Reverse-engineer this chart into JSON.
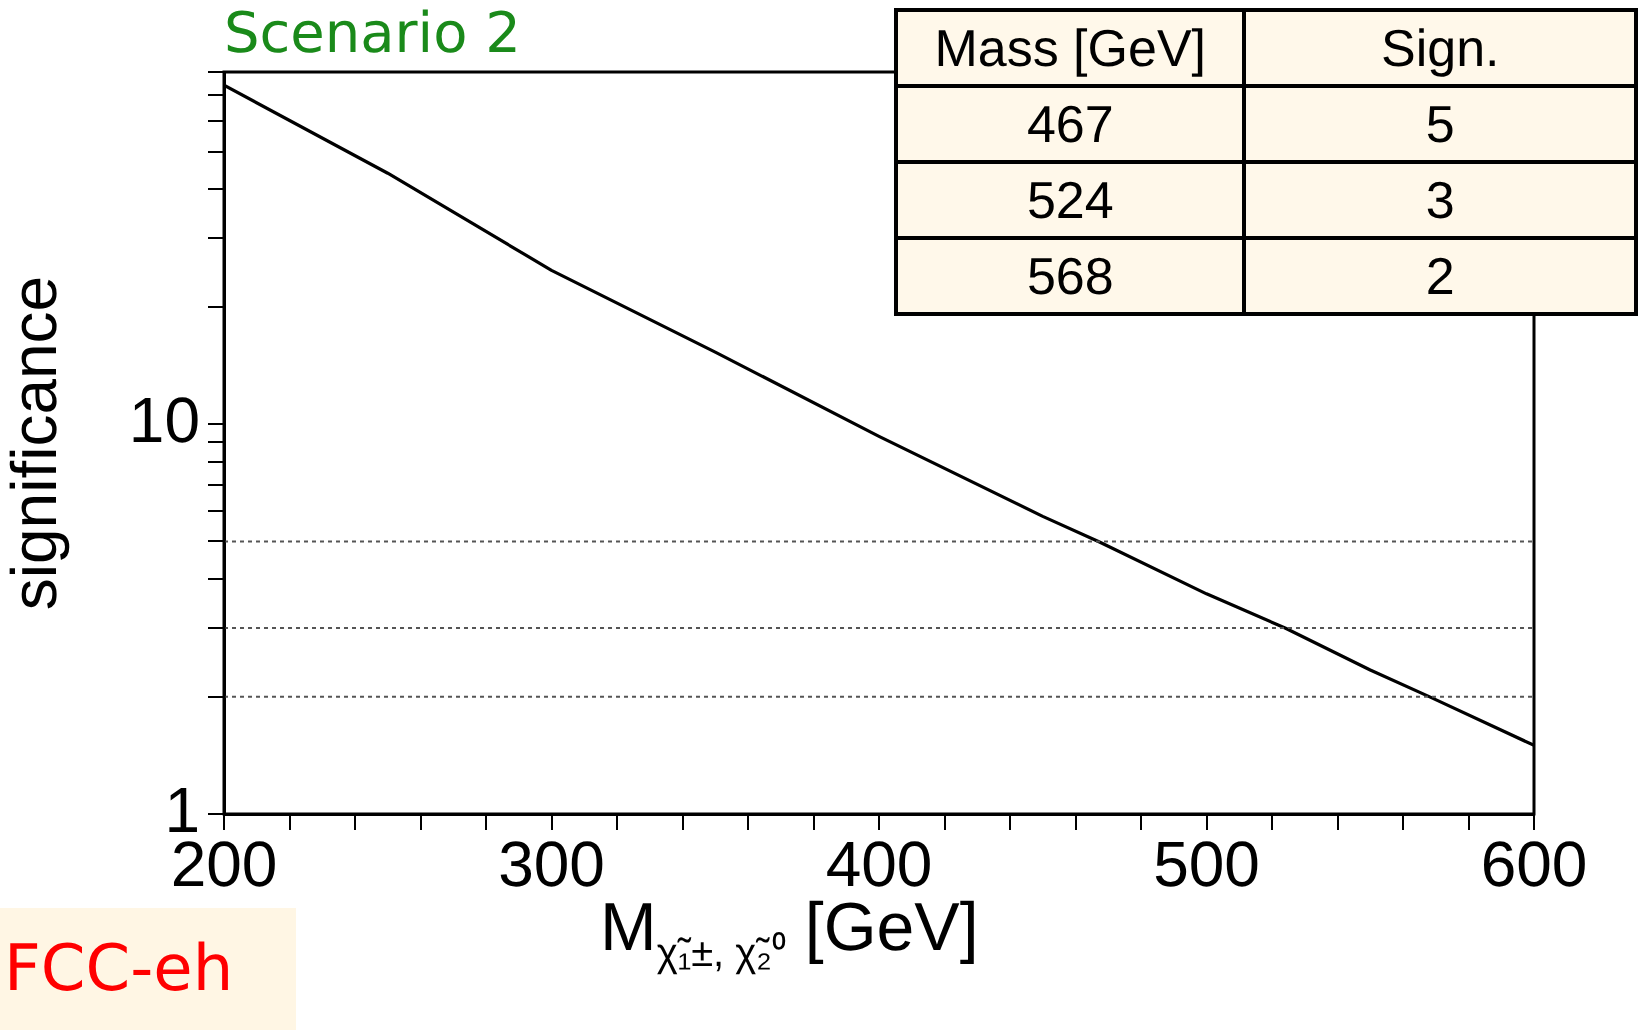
{
  "chart_data": {
    "type": "line",
    "title": "Scenario 2",
    "xlabel": "M$_{χ̃₁±, χ̃₂⁰}$ [GeV]",
    "ylabel": "significance",
    "x": [
      200,
      250,
      300,
      350,
      400,
      450,
      467,
      500,
      524,
      550,
      568,
      600
    ],
    "series": [
      {
        "color": "#000000",
        "values": [
          74,
          44,
          24.8,
          15.3,
          9.3,
          5.8,
          5,
          3.67,
          3,
          2.34,
          2,
          1.5
        ]
      }
    ],
    "xlim": [
      200,
      600
    ],
    "xticks": [
      200,
      {
        "value": 220,
        "label": null
      },
      {
        "value": 240,
        "label": null
      },
      {
        "value": 260,
        "label": null
      },
      {
        "value": 280,
        "label": null
      },
      300,
      {
        "value": 320,
        "label": null
      },
      {
        "value": 340,
        "label": null
      },
      {
        "value": 360,
        "label": null
      },
      {
        "value": 380,
        "label": null
      },
      400,
      {
        "value": 420,
        "label": null
      },
      {
        "value": 440,
        "label": null
      },
      {
        "value": 460,
        "label": null
      },
      {
        "value": 480,
        "label": null
      },
      500,
      {
        "value": 520,
        "label": null
      },
      {
        "value": 540,
        "label": null
      },
      {
        "value": 560,
        "label": null
      },
      {
        "value": 580,
        "label": null
      },
      600
    ],
    "ylim": [
      1,
      80
    ],
    "yticks": [
      1,
      {
        "value": 2,
        "label": null
      },
      {
        "value": 3,
        "label": null
      },
      {
        "value": 4,
        "label": null
      },
      {
        "value": 5,
        "label": null
      },
      {
        "value": 6,
        "label": null
      },
      {
        "value": 7,
        "label": null
      },
      {
        "value": 8,
        "label": null
      },
      {
        "value": 9,
        "label": null
      },
      10,
      {
        "value": 20,
        "label": null
      },
      {
        "value": 30,
        "label": null
      },
      {
        "value": 40,
        "label": null
      },
      {
        "value": 50,
        "label": null
      },
      {
        "value": 60,
        "label": null
      },
      {
        "value": 70,
        "label": null
      },
      {
        "value": 80,
        "label": null
      }
    ],
    "log": "y",
    "grid": false,
    "marker": "none",
    "line_style": "solid",
    "ref_lines": [
      {
        "axis": "y",
        "value": 5,
        "color": "#555555",
        "line_style": "dotted"
      },
      {
        "axis": "y",
        "value": 3,
        "color": "#555555",
        "line_style": "dotted"
      },
      {
        "axis": "y",
        "value": 2,
        "color": "#555555",
        "line_style": "dotted"
      }
    ],
    "annotations": [
      "Mass [GeV]",
      "Sign.",
      "467",
      "5",
      "524",
      "3",
      "568",
      "2",
      "FCC-eh"
    ]
  }
}
